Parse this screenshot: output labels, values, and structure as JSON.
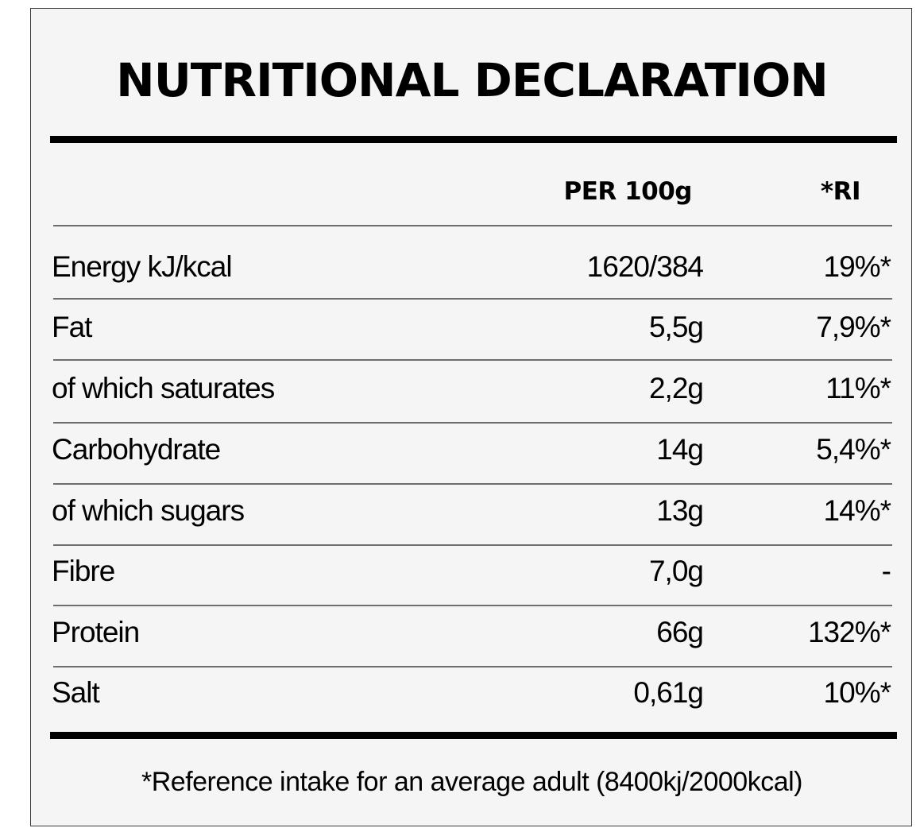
{
  "title": "NUTRITIONAL DECLARATION",
  "headers": {
    "per100": "PER 100g",
    "ri": "*RI"
  },
  "rows": [
    {
      "name": "Energy kJ/kcal",
      "per100": "1620/384",
      "ri": "19%*"
    },
    {
      "name": "Fat",
      "per100": "5,5g",
      "ri": "7,9%*"
    },
    {
      "name": "of which saturates",
      "per100": "2,2g",
      "ri": "11%*"
    },
    {
      "name": "Carbohydrate",
      "per100": "14g",
      "ri": "5,4%*"
    },
    {
      "name": "of which sugars",
      "per100": "13g",
      "ri": "14%*"
    },
    {
      "name": "Fibre",
      "per100": "7,0g",
      "ri": "-"
    },
    {
      "name": "Protein",
      "per100": "66g",
      "ri": "132%*"
    },
    {
      "name": "Salt",
      "per100": "0,61g",
      "ri": "10%*"
    }
  ],
  "footnote": "*Reference intake for an average adult (8400kj/2000kcal)"
}
